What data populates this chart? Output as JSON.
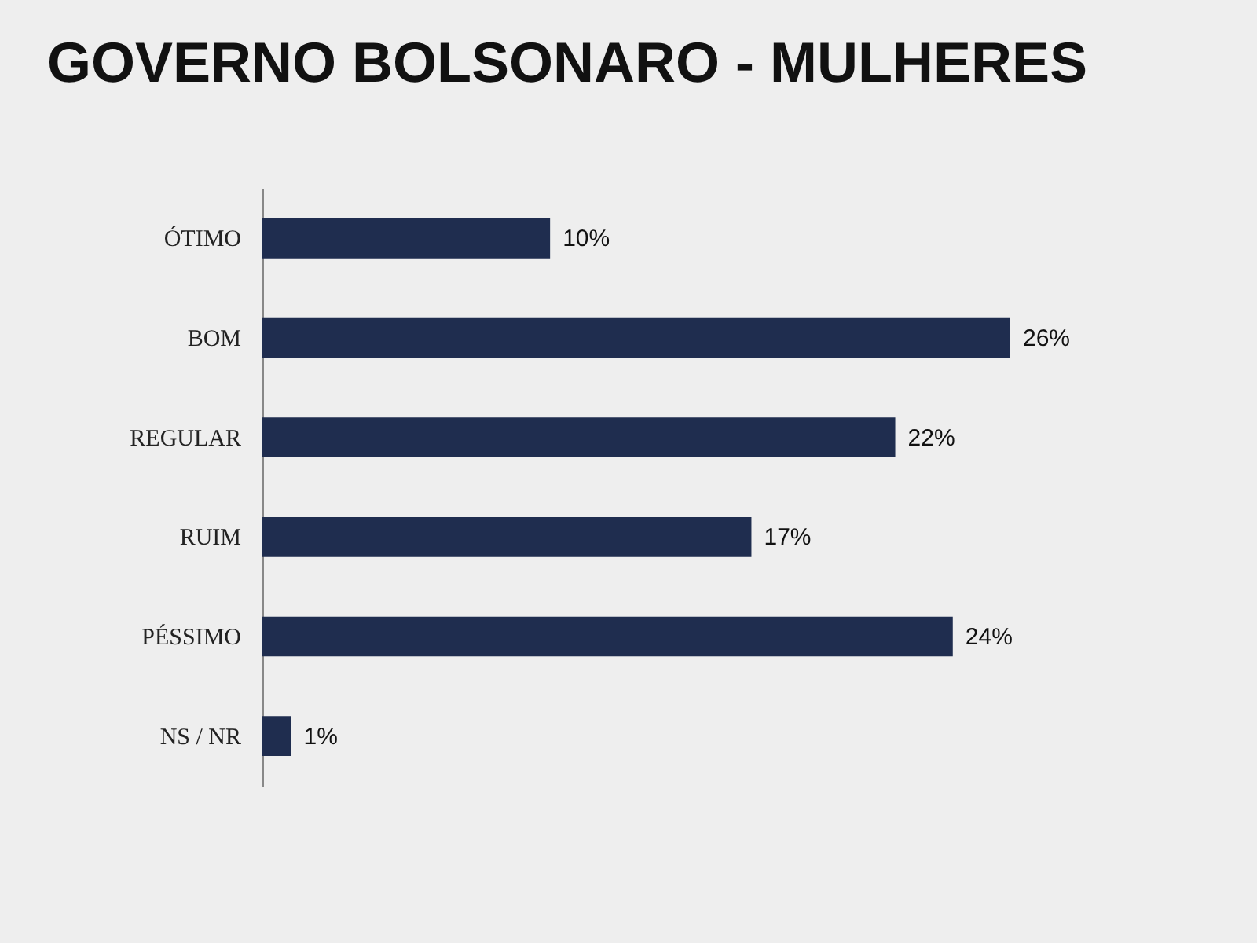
{
  "chart_data": {
    "type": "bar",
    "orientation": "horizontal",
    "title": "GOVERNO BOLSONARO - MULHERES",
    "categories": [
      "ÓTIMO",
      "BOM",
      "REGULAR",
      "RUIM",
      "PÉSSIMO",
      "NS / NR"
    ],
    "values": [
      10,
      26,
      22,
      17,
      24,
      1
    ],
    "value_labels": [
      "10%",
      "26%",
      "22%",
      "17%",
      "24%",
      "1%"
    ],
    "color": "#1f2d4f",
    "tick_labels": "y"
  }
}
